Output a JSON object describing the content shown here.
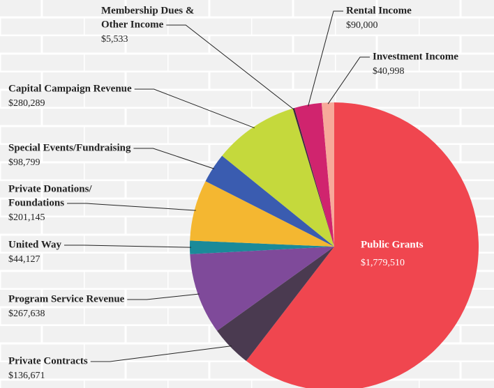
{
  "chart_data": {
    "type": "pie",
    "categories": [
      [
        "Public Grants"
      ],
      [
        "Private Contracts"
      ],
      [
        "Program Service Revenue"
      ],
      [
        "United Way"
      ],
      [
        "Private Donations/",
        "Foundations"
      ],
      [
        "Special Events/Fundraising"
      ],
      [
        "Capital Campaign Revenue"
      ],
      [
        "Membership Dues &",
        "Other Income"
      ],
      [
        "Rental Income"
      ],
      [
        "Investment Income"
      ]
    ],
    "values": [
      1779510,
      136671,
      267638,
      44127,
      201145,
      98799,
      280289,
      5533,
      90000,
      40998
    ],
    "value_labels": [
      "$1,779,510",
      "$136,671",
      "$267,638",
      "$44,127",
      "$201,145",
      "$98,799",
      "$280,289",
      "$5,533",
      "$90,000",
      "$40,998"
    ],
    "colors": [
      "#f0464f",
      "#4a3a50",
      "#7f4a9a",
      "#1a8a99",
      "#f4b731",
      "#3a5cb0",
      "#c5d93c",
      "#3a2840",
      "#d0246e",
      "#f7a99a"
    ]
  }
}
